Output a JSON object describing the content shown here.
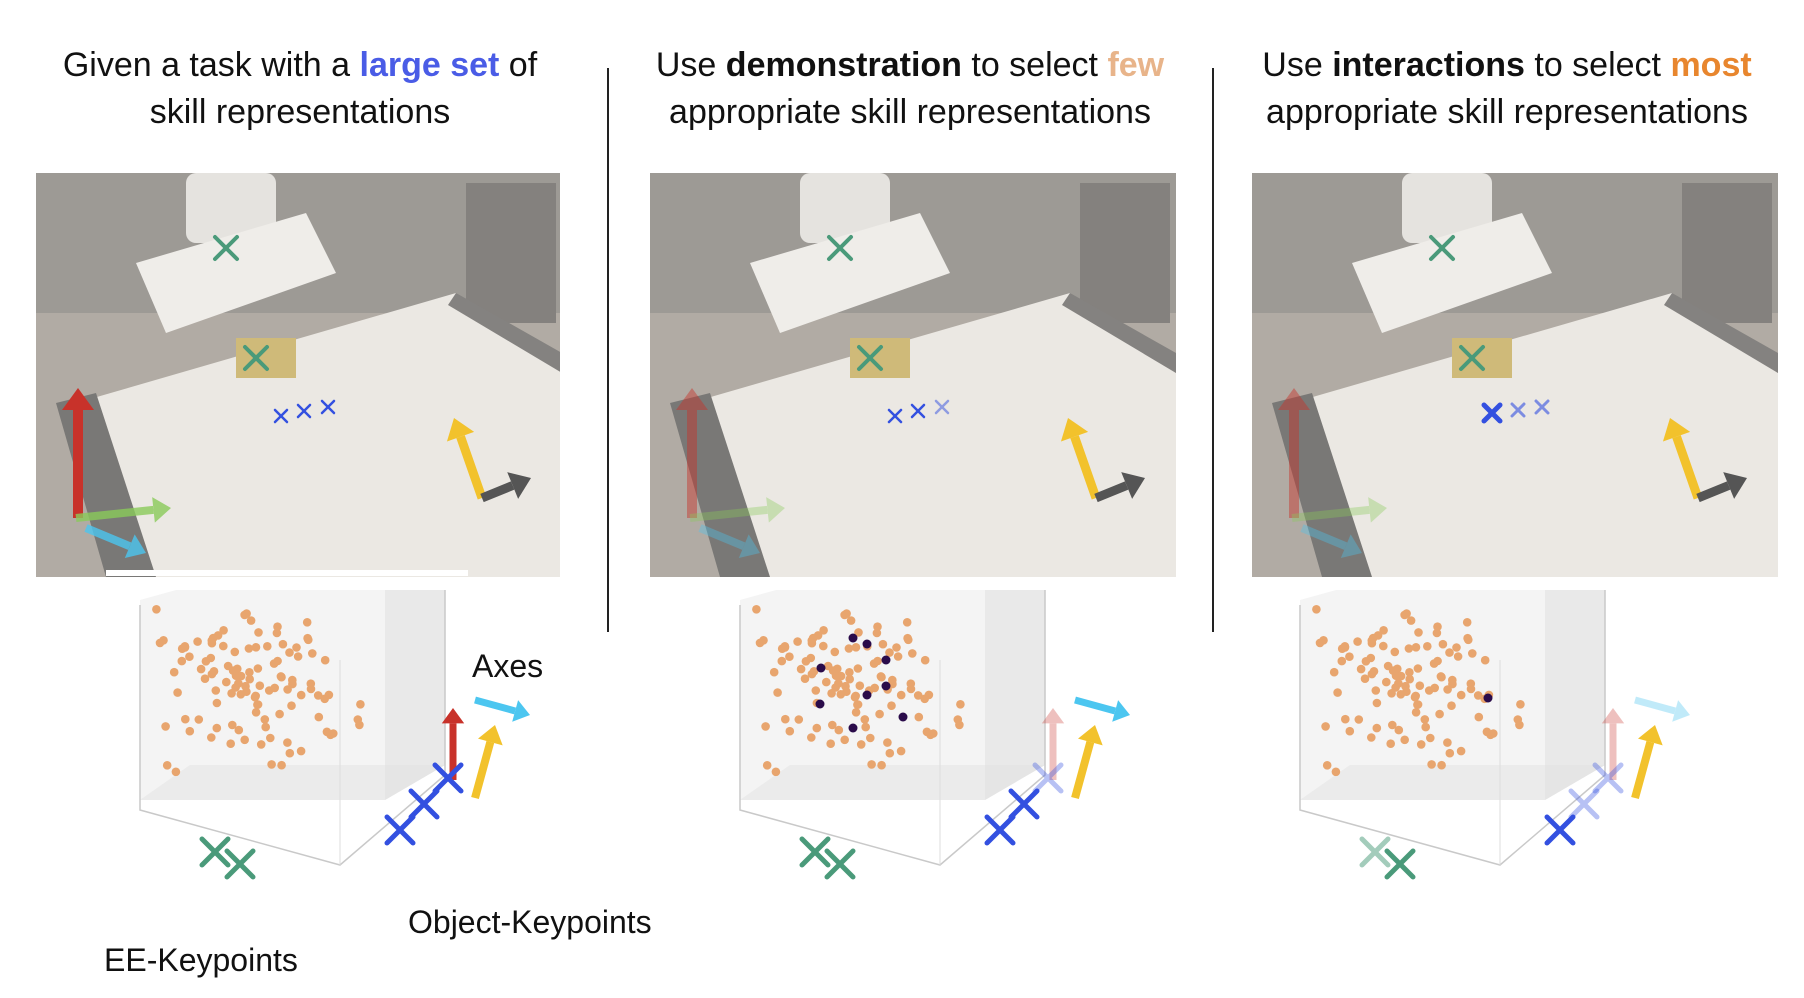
{
  "colors": {
    "large_set": "#4a5ce6",
    "few": "#e8b48a",
    "most": "#e8862e",
    "ee_keypoint": "#4a9a7a",
    "object_keypoint": "#3350e0",
    "axis_red": "#c8322a",
    "axis_yellow": "#f2c22c",
    "axis_cyan": "#4cc6f0",
    "axis_green": "#8acb5a",
    "axis_gray": "#555555",
    "scatter_point": "#e8a56e",
    "selected_point": "#2a0b4a"
  },
  "panels": [
    {
      "heading": {
        "line1_pre": "Given a task with a ",
        "line1_emph": "large set",
        "line1_post": " of",
        "line2": "skill representations"
      },
      "photo_icon": "robot-arm-workspace-photo",
      "labels": {
        "axes": "Axes",
        "object_keypoints": "Object-Keypoints",
        "ee_keypoints": "EE-Keypoints"
      }
    },
    {
      "heading": {
        "line1_pre": "Use ",
        "line1_bold": "demonstration",
        "line1_mid": " to select ",
        "line1_emph": "few",
        "line2": "appropriate skill representations"
      },
      "photo_icon": "robot-arm-workspace-photo"
    },
    {
      "heading": {
        "line1_pre": "Use ",
        "line1_bold": "interactions",
        "line1_mid": " to select ",
        "line1_emph": "most",
        "line2": "appropriate skill representations"
      },
      "photo_icon": "robot-arm-workspace-photo"
    }
  ]
}
